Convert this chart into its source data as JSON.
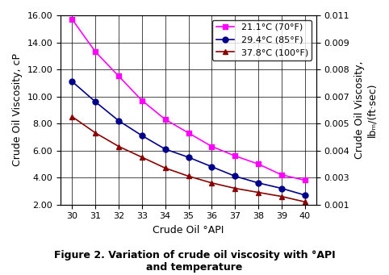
{
  "x": [
    30,
    31,
    32,
    33,
    34,
    35,
    36,
    37,
    38,
    39,
    40
  ],
  "series": [
    {
      "label": "21.1°C (70°F)",
      "color": "#ff00ff",
      "marker": "s",
      "values": [
        15.7,
        13.3,
        11.5,
        9.7,
        8.3,
        7.3,
        6.3,
        5.6,
        5.0,
        4.2,
        3.8
      ]
    },
    {
      "label": "29.4°C (85°F)",
      "color": "#00008b",
      "marker": "o",
      "values": [
        11.1,
        9.6,
        8.2,
        7.1,
        6.1,
        5.5,
        4.8,
        4.1,
        3.6,
        3.2,
        2.7
      ]
    },
    {
      "label": "37.8°C (100°F)",
      "color": "#8b0000",
      "marker": "^",
      "values": [
        8.5,
        7.3,
        6.3,
        5.5,
        4.7,
        4.1,
        3.6,
        3.2,
        2.9,
        2.6,
        2.2
      ]
    }
  ],
  "xlabel": "Crude Oil °API",
  "ylabel_left": "Crude Oil Viscosity, cP",
  "ylabel_right": "Crude Oil Viscosity,\nlbₘ/(ft·sec)",
  "ylim_left": [
    2.0,
    16.0
  ],
  "ylim_right": [
    0.001,
    0.011
  ],
  "yticks_left": [
    2.0,
    4.0,
    6.0,
    8.0,
    10.0,
    12.0,
    14.0,
    16.0
  ],
  "yticks_right": [
    0.001,
    0.003,
    0.004,
    0.005,
    0.007,
    0.008,
    0.009,
    0.011
  ],
  "xticks": [
    30,
    31,
    32,
    33,
    34,
    35,
    36,
    37,
    38,
    39,
    40
  ],
  "title": "Figure 2. Variation of crude oil viscosity with °API\nand temperature",
  "grid": true,
  "scale_factor": 0.000672
}
